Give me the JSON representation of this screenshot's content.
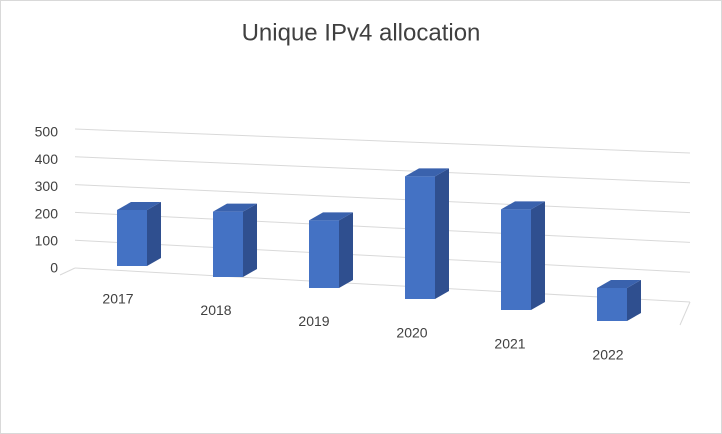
{
  "chart_data": {
    "type": "bar3d",
    "title": "Unique IPv4 allocation",
    "categories": [
      "2017",
      "2018",
      "2019",
      "2020",
      "2021",
      "2022"
    ],
    "values": [
      200,
      230,
      235,
      420,
      340,
      110
    ],
    "color": "#4472c4",
    "ylim": [
      0,
      500
    ],
    "yticks": [
      0,
      100,
      200,
      300,
      400,
      500
    ],
    "grid": true
  }
}
